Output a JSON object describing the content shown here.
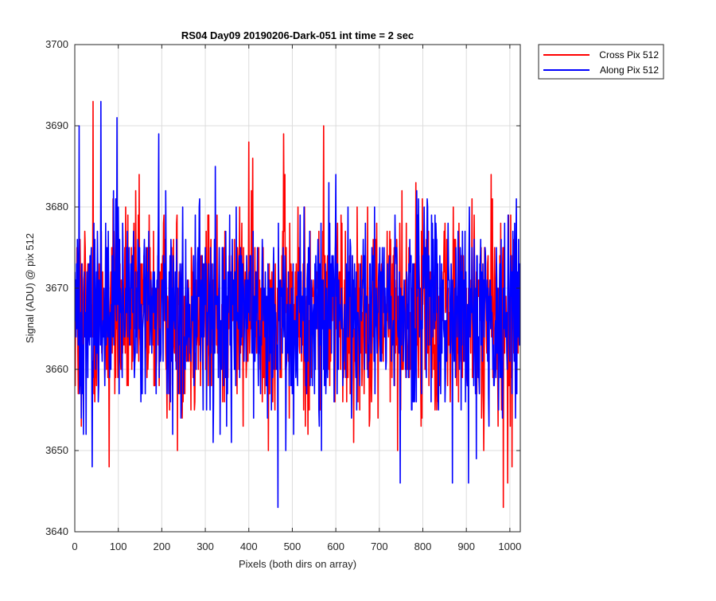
{
  "chart_data": {
    "type": "line",
    "title": "RS04 Day09 20190206-Dark-051 int time = 2 sec",
    "xlabel": "Pixels (both dirs on array)",
    "ylabel": "Signal (ADU) @ pix 512",
    "xlim": [
      0,
      1024
    ],
    "ylim": [
      3640,
      3700
    ],
    "xticks": [
      "0",
      "100",
      "200",
      "300",
      "400",
      "500",
      "600",
      "700",
      "800",
      "900",
      "1000"
    ],
    "yticks": [
      "3640",
      "3650",
      "3660",
      "3670",
      "3680",
      "3690",
      "3700"
    ],
    "grid": true,
    "legend_position": "outside-top-right",
    "series": [
      {
        "name": "Cross Pix 512",
        "color": "#ff0000",
        "mean": 3667,
        "noise": "random, typical range 3654-3682",
        "points": [
          [
            0,
            3668
          ],
          [
            8,
            3657
          ],
          [
            15,
            3653
          ],
          [
            42,
            3693
          ],
          [
            79,
            3648
          ],
          [
            400,
            3688
          ],
          [
            480,
            3689
          ],
          [
            572,
            3690
          ],
          [
            985,
            3643
          ],
          [
            995,
            3646
          ],
          [
            1005,
            3648
          ]
        ]
      },
      {
        "name": "Along Pix 512",
        "color": "#0000ff",
        "mean": 3667,
        "noise": "random, typical range 3654-3682",
        "points": [
          [
            0,
            3672
          ],
          [
            10,
            3690
          ],
          [
            40,
            3648
          ],
          [
            60,
            3693
          ],
          [
            97,
            3691
          ],
          [
            193,
            3689
          ],
          [
            467,
            3643
          ],
          [
            748,
            3646
          ],
          [
            868,
            3646
          ],
          [
            905,
            3646
          ]
        ]
      }
    ]
  }
}
